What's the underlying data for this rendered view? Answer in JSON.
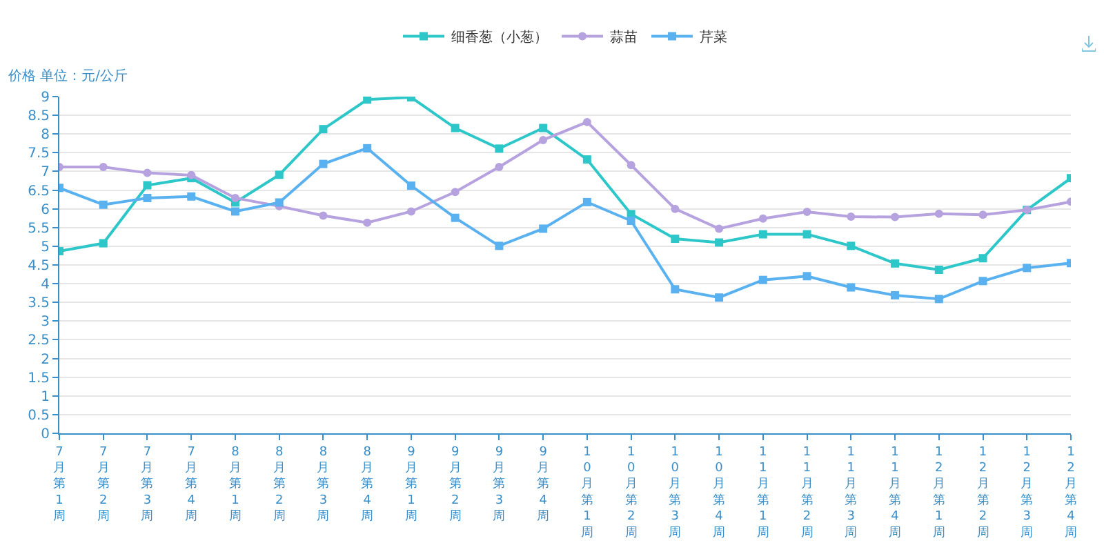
{
  "chart_data": {
    "type": "line",
    "ylabel": "价格 单位：元/公斤",
    "categories": [
      "7月第1周",
      "7月第2周",
      "7月第3周",
      "7月第4周",
      "8月第1周",
      "8月第2周",
      "8月第3周",
      "8月第4周",
      "9月第1周",
      "9月第2周",
      "9月第3周",
      "9月第4周",
      "10月第1周",
      "10月第2周",
      "10月第3周",
      "10月第4周",
      "11月第1周",
      "11月第2周",
      "11月第3周",
      "11月第4周",
      "12月第1周",
      "12月第2周",
      "12月第3周",
      "12月第4周"
    ],
    "series": [
      {
        "name": "细香葱（小葱）",
        "color": "#2ec7c9",
        "marker": "square",
        "values": [
          4.87,
          5.08,
          6.63,
          6.82,
          6.17,
          6.91,
          8.13,
          8.92,
          8.98,
          8.16,
          7.61,
          8.16,
          7.32,
          5.86,
          5.2,
          5.1,
          5.32,
          5.32,
          5.01,
          4.54,
          4.37,
          4.68,
          5.97,
          6.82
        ]
      },
      {
        "name": "蒜苗",
        "color": "#b6a2de",
        "marker": "circle",
        "values": [
          7.12,
          7.12,
          6.96,
          6.9,
          6.29,
          6.07,
          5.82,
          5.63,
          5.93,
          6.45,
          7.12,
          7.84,
          8.32,
          7.17,
          6.0,
          5.47,
          5.74,
          5.92,
          5.79,
          5.78,
          5.87,
          5.84,
          5.97,
          6.19
        ]
      },
      {
        "name": "芹菜",
        "color": "#5ab1ef",
        "marker": "square",
        "values": [
          6.56,
          6.11,
          6.29,
          6.33,
          5.93,
          6.17,
          7.2,
          7.62,
          6.62,
          5.76,
          5.01,
          5.47,
          6.18,
          5.68,
          3.85,
          3.63,
          4.1,
          4.2,
          3.9,
          3.69,
          3.59,
          4.07,
          4.42,
          4.55
        ]
      }
    ],
    "ylim": [
      0,
      9
    ],
    "yticks": [
      0,
      0.5,
      1,
      1.5,
      2,
      2.5,
      3,
      3.5,
      4,
      4.5,
      5,
      5.5,
      6,
      6.5,
      7,
      7.5,
      8,
      8.5,
      9
    ],
    "grid": "y",
    "legend": "top",
    "line_style": "solid"
  }
}
